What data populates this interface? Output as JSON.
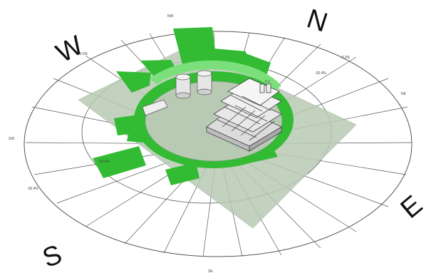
{
  "compass": {
    "north": "N",
    "west": "W",
    "south": "S",
    "east": "E"
  },
  "ring_labels": {
    "nnw": "NW",
    "left_upper": "-0.6%",
    "right_upper": "-0.3%",
    "right_mid": "-30.4%",
    "right_ne": "NE",
    "top_small": "0.3",
    "sw": "SW",
    "left_mid": "-30.4%",
    "left_lower": "-30.4%",
    "bottom": "SE"
  },
  "colors": {
    "ring_green": "#33bb33",
    "light_green": "#7be07b",
    "site_gray": "#b8c9b4",
    "outline": "#444444"
  }
}
